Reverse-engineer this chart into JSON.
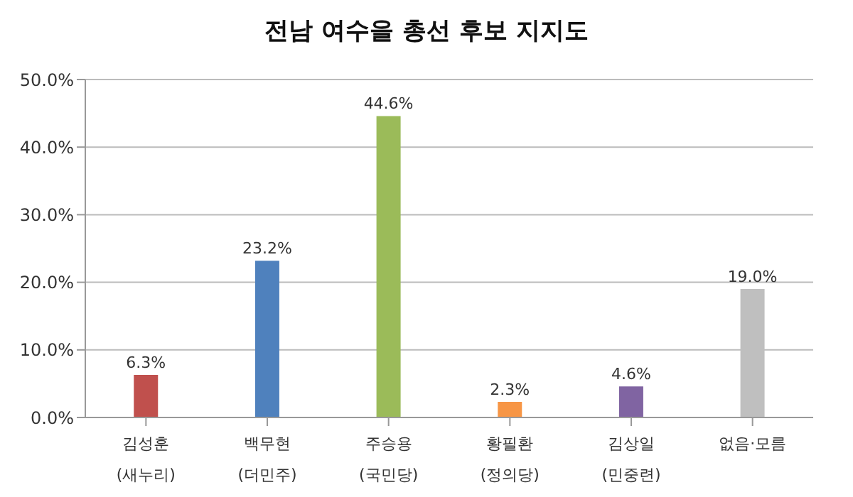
{
  "chart_data": {
    "type": "bar",
    "title": "전남 여수을 총선 후보 지지도",
    "categories": [
      "김성훈\n(새누리)",
      "백무현\n(더민주)",
      "주승용\n(국민당)",
      "황필환\n(정의당)",
      "김상일\n(민중련)",
      "없음·모름"
    ],
    "values": [
      6.3,
      23.2,
      44.6,
      2.3,
      4.6,
      19.0
    ],
    "colors": [
      "#c0504d",
      "#4f81bd",
      "#9bbb59",
      "#f79646",
      "#8064a2",
      "#bfbfbf"
    ],
    "value_labels": [
      "6.3%",
      "23.2%",
      "44.6%",
      "2.3%",
      "4.6%",
      "19.0%"
    ],
    "ylim": [
      0,
      50
    ],
    "yticks": [
      {
        "value": 0,
        "label": "0.0%"
      },
      {
        "value": 10,
        "label": "10.0%"
      },
      {
        "value": 20,
        "label": "20.0%"
      },
      {
        "value": 30,
        "label": "30.0%"
      },
      {
        "value": 40,
        "label": "40.0%"
      },
      {
        "value": 50,
        "label": "50.0%"
      }
    ],
    "grid": "y"
  }
}
